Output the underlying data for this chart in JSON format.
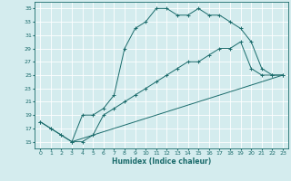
{
  "title": "",
  "xlabel": "Humidex (Indice chaleur)",
  "ylabel": "",
  "xlim": [
    -0.5,
    23.5
  ],
  "ylim": [
    14,
    36
  ],
  "yticks": [
    15,
    17,
    19,
    21,
    23,
    25,
    27,
    29,
    31,
    33,
    35
  ],
  "xticks": [
    0,
    1,
    2,
    3,
    4,
    5,
    6,
    7,
    8,
    9,
    10,
    11,
    12,
    13,
    14,
    15,
    16,
    17,
    18,
    19,
    20,
    21,
    22,
    23
  ],
  "bg_color": "#d4ecee",
  "grid_color": "#ffffff",
  "line_color": "#1a6b6b",
  "lines": [
    {
      "x": [
        0,
        1,
        2,
        3,
        4,
        5,
        6,
        7,
        8,
        9,
        10,
        11,
        12,
        13,
        14,
        15,
        16,
        17,
        18,
        19,
        20,
        21,
        22,
        23
      ],
      "y": [
        18,
        17,
        16,
        15,
        19,
        19,
        20,
        22,
        29,
        32,
        33,
        35,
        35,
        34,
        34,
        35,
        34,
        34,
        33,
        32,
        30,
        26,
        25,
        25
      ],
      "has_markers": true
    },
    {
      "x": [
        0,
        1,
        2,
        3,
        4,
        5,
        6,
        7,
        8,
        9,
        10,
        11,
        12,
        13,
        14,
        15,
        16,
        17,
        18,
        19,
        20,
        21,
        22,
        23
      ],
      "y": [
        18,
        17,
        16,
        15,
        15,
        16,
        19,
        20,
        21,
        22,
        23,
        24,
        25,
        26,
        27,
        27,
        28,
        29,
        29,
        30,
        26,
        25,
        25,
        25
      ],
      "has_markers": true
    },
    {
      "x": [
        3,
        23
      ],
      "y": [
        15,
        25
      ],
      "has_markers": false
    }
  ]
}
